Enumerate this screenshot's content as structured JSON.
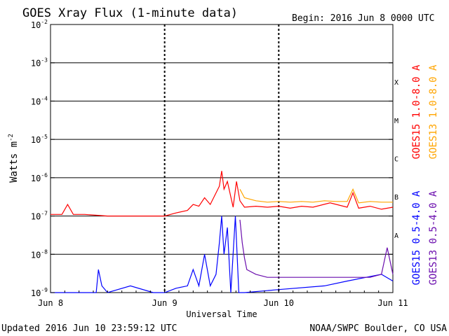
{
  "chart_data": {
    "type": "line",
    "title": "GOES Xray Flux (1-minute data)",
    "begin_label": "Begin:  2016 Jun 8 0000 UTC",
    "ylabel": "Watts m",
    "ylabel_sup": "-2",
    "xlabel": "Universal Time",
    "y_scale": "log",
    "ylim": [
      1e-09,
      0.01
    ],
    "y_ticks": [
      {
        "mant": "10",
        "exp": "-2"
      },
      {
        "mant": "10",
        "exp": "-3"
      },
      {
        "mant": "10",
        "exp": "-4"
      },
      {
        "mant": "10",
        "exp": "-5"
      },
      {
        "mant": "10",
        "exp": "-6"
      },
      {
        "mant": "10",
        "exp": "-7"
      },
      {
        "mant": "10",
        "exp": "-8"
      },
      {
        "mant": "10",
        "exp": "-9"
      }
    ],
    "x_ticks": [
      "Jun 8",
      "Jun 9",
      "Jun 10",
      "Jun 11"
    ],
    "xlim": [
      "2016-06-08 00:00",
      "2016-06-11 00:00"
    ],
    "grid": true,
    "flare_classes": [
      {
        "label": "X",
        "level": 0.0001
      },
      {
        "label": "M",
        "level": 1e-05
      },
      {
        "label": "C",
        "level": 1e-06
      },
      {
        "label": "B",
        "level": 1e-07
      },
      {
        "label": "A",
        "level": 1e-08
      }
    ],
    "series": [
      {
        "name": "GOES15 1.0-8.0 A",
        "color": "#ff0000",
        "t_days": [
          0.0,
          0.1,
          0.15,
          0.2,
          0.3,
          0.5,
          0.7,
          0.9,
          1.0,
          1.1,
          1.2,
          1.25,
          1.3,
          1.35,
          1.4,
          1.45,
          1.48,
          1.5,
          1.52,
          1.55,
          1.6,
          1.63,
          1.66,
          1.7,
          1.8,
          1.9,
          2.0,
          2.1,
          2.2,
          2.3,
          2.45,
          2.6,
          2.65,
          2.7,
          2.8,
          2.9,
          3.0
        ],
        "flux": [
          1.1e-07,
          1.1e-07,
          2e-07,
          1.1e-07,
          1.1e-07,
          1e-07,
          1e-07,
          1e-07,
          1e-07,
          1.2e-07,
          1.4e-07,
          2e-07,
          1.8e-07,
          3e-07,
          2e-07,
          4e-07,
          6e-07,
          1.5e-06,
          5e-07,
          8e-07,
          1.7e-07,
          8e-07,
          2.5e-07,
          1.7e-07,
          1.8e-07,
          1.7e-07,
          1.8e-07,
          1.6e-07,
          1.8e-07,
          1.7e-07,
          2.2e-07,
          1.7e-07,
          4e-07,
          1.6e-07,
          1.8e-07,
          1.5e-07,
          1.7e-07
        ]
      },
      {
        "name": "GOES13 1.0-8.0 A",
        "color": "#ffa500",
        "t_days": [
          1.66,
          1.7,
          1.8,
          1.9,
          2.0,
          2.1,
          2.2,
          2.3,
          2.4,
          2.5,
          2.6,
          2.65,
          2.7,
          2.8,
          2.9,
          3.0
        ],
        "flux": [
          5e-07,
          3e-07,
          2.5e-07,
          2.3e-07,
          2.4e-07,
          2.3e-07,
          2.4e-07,
          2.3e-07,
          2.5e-07,
          2.4e-07,
          2.4e-07,
          5e-07,
          2.2e-07,
          2.4e-07,
          2.3e-07,
          2.3e-07
        ]
      },
      {
        "name": "GOES15 0.5-4.0 A",
        "color": "#0000ff",
        "t_days": [
          0.0,
          0.3,
          0.4,
          0.42,
          0.45,
          0.5,
          0.7,
          0.9,
          1.0,
          1.1,
          1.2,
          1.25,
          1.3,
          1.35,
          1.4,
          1.45,
          1.48,
          1.5,
          1.52,
          1.55,
          1.58,
          1.62,
          1.65,
          1.7,
          2.0,
          2.4,
          2.6,
          2.9,
          3.0
        ],
        "flux": [
          1e-09,
          1e-09,
          1e-09,
          4e-09,
          1.5e-09,
          1e-09,
          1.5e-09,
          1e-09,
          1e-09,
          1.3e-09,
          1.5e-09,
          4e-09,
          1.5e-09,
          1e-08,
          1.5e-09,
          3e-09,
          2e-08,
          1e-07,
          1e-08,
          5e-08,
          1e-09,
          1e-07,
          1e-09,
          1e-09,
          1.2e-09,
          1.5e-09,
          2e-09,
          3e-09,
          2e-09
        ]
      },
      {
        "name": "GOES13 0.5-4.0 A",
        "color": "#6a0dad",
        "t_days": [
          1.66,
          1.68,
          1.7,
          1.72,
          1.8,
          1.9,
          2.0,
          2.1,
          2.2,
          2.3,
          2.4,
          2.5,
          2.6,
          2.7,
          2.8,
          2.9,
          2.95,
          3.0
        ],
        "flux": [
          8e-08,
          2e-08,
          8e-09,
          4e-09,
          3e-09,
          2.5e-09,
          2.5e-09,
          2.5e-09,
          2.5e-09,
          2.5e-09,
          2.5e-09,
          2.5e-09,
          2.5e-09,
          2.5e-09,
          2.5e-09,
          3e-09,
          1.5e-08,
          3e-09
        ]
      }
    ]
  },
  "footer": {
    "updated": "Updated 2016 Jun 10 23:59:12 UTC",
    "credit": "NOAA/SWPC Boulder, CO USA"
  }
}
